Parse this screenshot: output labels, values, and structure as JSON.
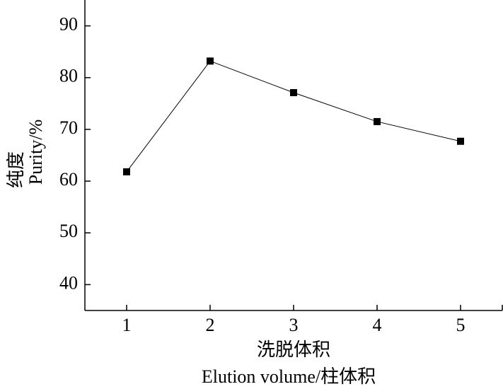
{
  "chart_data": {
    "type": "line",
    "xlabel": [
      "洗脱体积",
      "Elution volume/柱体积"
    ],
    "ylabel": [
      "纯度",
      "Purity/%"
    ],
    "x": [
      1,
      2,
      3,
      4,
      5
    ],
    "series": [
      {
        "color": "#000000",
        "values": [
          61.8,
          83.2,
          77.1,
          71.5,
          67.7
        ]
      }
    ],
    "xlim": [
      0.5,
      5.5
    ],
    "xticks": [
      1,
      2,
      3,
      4,
      5
    ],
    "ylim": [
      35,
      95
    ],
    "yticks": [
      40,
      50,
      60,
      70,
      80,
      90
    ],
    "grid": false
  }
}
